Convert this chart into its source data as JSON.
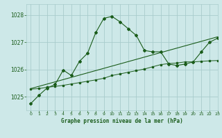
{
  "xlabel": "Graphe pression niveau de la mer (hPa)",
  "bg_color": "#cde8e8",
  "grid_color": "#a8cccc",
  "line_color": "#1a5c1a",
  "ylim": [
    1024.5,
    1028.4
  ],
  "xlim": [
    -0.5,
    23
  ],
  "yticks": [
    1025,
    1026,
    1027,
    1028
  ],
  "xticks": [
    0,
    1,
    2,
    3,
    4,
    5,
    6,
    7,
    8,
    9,
    10,
    11,
    12,
    13,
    14,
    15,
    16,
    17,
    18,
    19,
    20,
    21,
    22,
    23
  ],
  "line1_x": [
    0,
    1,
    2,
    3,
    4,
    5,
    6,
    7,
    8,
    9,
    10,
    11,
    12,
    13,
    14,
    15,
    16,
    17,
    18,
    19,
    20,
    21,
    22,
    23
  ],
  "line1_y": [
    1024.75,
    1025.05,
    1025.32,
    1025.45,
    1025.98,
    1025.78,
    1026.3,
    1026.6,
    1027.35,
    1027.88,
    1027.95,
    1027.75,
    1027.5,
    1027.25,
    1026.7,
    1026.65,
    1026.65,
    1026.2,
    1026.15,
    1026.2,
    1026.28,
    1026.65,
    1027.0,
    1027.15
  ],
  "line2_x": [
    0,
    23
  ],
  "line2_y": [
    1025.3,
    1027.2
  ],
  "line3_x": [
    0,
    1,
    2,
    3,
    4,
    5,
    6,
    7,
    8,
    9,
    10,
    11,
    12,
    13,
    14,
    15,
    16,
    17,
    18,
    19,
    20,
    21,
    22,
    23
  ],
  "line3_y": [
    1025.28,
    1025.3,
    1025.35,
    1025.38,
    1025.42,
    1025.47,
    1025.52,
    1025.57,
    1025.62,
    1025.68,
    1025.78,
    1025.84,
    1025.9,
    1025.96,
    1026.02,
    1026.1,
    1026.18,
    1026.22,
    1026.24,
    1026.28,
    1026.28,
    1026.3,
    1026.32,
    1026.33
  ]
}
